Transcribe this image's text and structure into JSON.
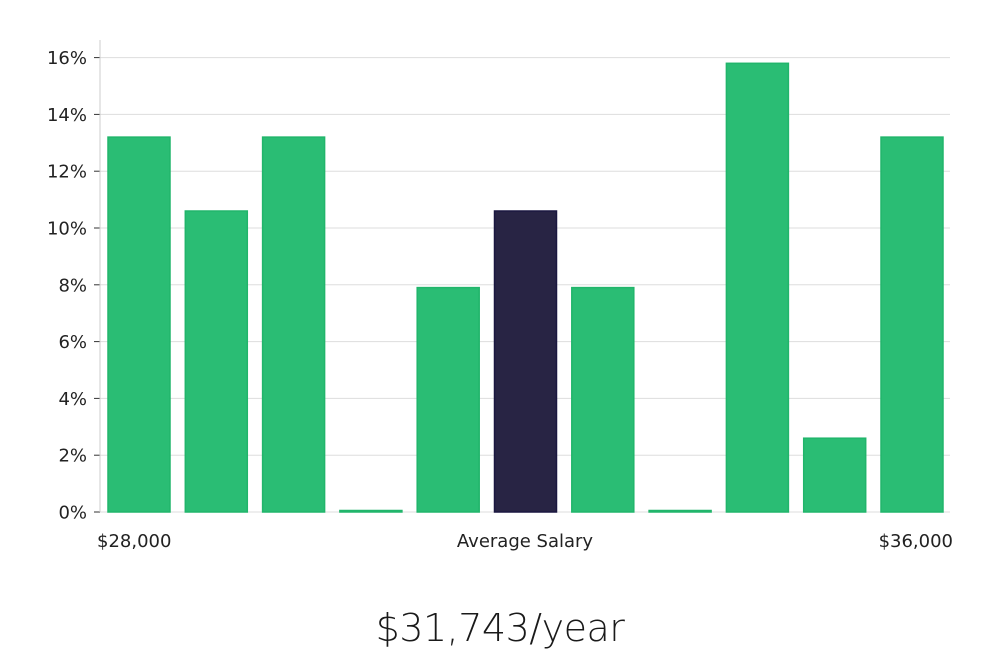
{
  "chart_data": {
    "type": "bar",
    "title": "",
    "xlabel": "Average Salary",
    "ylabel": "",
    "x_start_label": "$28,000",
    "x_end_label": "$36,000",
    "ylim": [
      0,
      16.5
    ],
    "yticks": [
      "0%",
      "2%",
      "4%",
      "6%",
      "8%",
      "10%",
      "12%",
      "14%",
      "16%"
    ],
    "ytick_values": [
      0,
      2,
      4,
      6,
      8,
      10,
      12,
      14,
      16
    ],
    "values": [
      13.2,
      10.6,
      13.2,
      0,
      7.9,
      10.6,
      7.9,
      0,
      15.8,
      2.6,
      13.2
    ],
    "highlight_index": 5,
    "grid": true
  },
  "colors": {
    "bar": "#2abd74",
    "bar_border": "#21b56b",
    "highlight": "#282444",
    "highlight_border": "#1a1740",
    "grid": "#dddddd",
    "axis": "#cccccc"
  },
  "salary": {
    "display": "$31,743/year"
  }
}
